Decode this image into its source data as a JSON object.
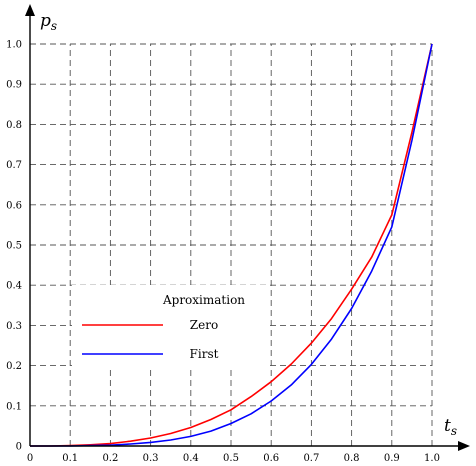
{
  "chart_data": {
    "type": "line",
    "xlabel": "t",
    "xlabel_sub": "s",
    "ylabel": "p",
    "ylabel_sub": "s",
    "xlim": [
      0,
      1.0
    ],
    "ylim": [
      0,
      1.0
    ],
    "grid": true,
    "x_ticks": [
      "0",
      "0.1",
      "0.2",
      "0.3",
      "0.4",
      "0.5",
      "0.6",
      "0.7",
      "0.8",
      "0.9",
      "1.0"
    ],
    "y_ticks": [
      "0",
      "0.1",
      "0.2",
      "0.3",
      "0.4",
      "0.5",
      "0.6",
      "0.7",
      "0.8",
      "0.9",
      "1.0"
    ],
    "legend": {
      "title": "Aproximation",
      "placement": "lower-left"
    },
    "series": [
      {
        "name": "Zero",
        "color": "#ff0000",
        "x": [
          0,
          0.05,
          0.1,
          0.15,
          0.2,
          0.25,
          0.3,
          0.35,
          0.4,
          0.45,
          0.5,
          0.55,
          0.6,
          0.65,
          0.7,
          0.75,
          0.8,
          0.85,
          0.9,
          0.95,
          1.0
        ],
        "y": [
          0,
          0,
          0.001,
          0.003,
          0.006,
          0.012,
          0.02,
          0.031,
          0.046,
          0.066,
          0.09,
          0.123,
          0.16,
          0.204,
          0.256,
          0.317,
          0.39,
          0.47,
          0.575,
          0.78,
          1.0
        ]
      },
      {
        "name": "First",
        "color": "#0000ff",
        "x": [
          0,
          0.05,
          0.1,
          0.15,
          0.2,
          0.25,
          0.3,
          0.35,
          0.4,
          0.45,
          0.5,
          0.55,
          0.6,
          0.65,
          0.7,
          0.75,
          0.8,
          0.85,
          0.9,
          0.95,
          1.0
        ],
        "y": [
          0,
          0,
          0,
          0.001,
          0.002,
          0.005,
          0.009,
          0.015,
          0.024,
          0.037,
          0.056,
          0.08,
          0.112,
          0.152,
          0.203,
          0.266,
          0.342,
          0.435,
          0.545,
          0.76,
          1.0
        ]
      }
    ]
  }
}
